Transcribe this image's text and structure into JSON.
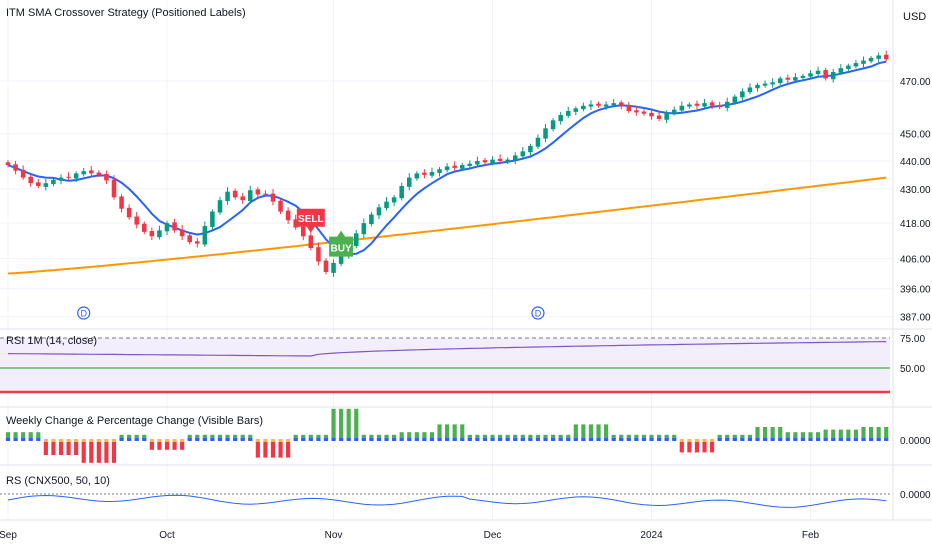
{
  "chart_data": [
    {
      "type": "candlestick",
      "title": "ITM SMA Crossover Strategy (Positioned Labels)",
      "currency": "USD",
      "y_ticks": [
        387.0,
        396.0,
        406.0,
        418.0,
        430.0,
        440.0,
        450.0,
        470.0
      ],
      "y_tick_labels": [
        "387.00",
        "396.00",
        "406.00",
        "418.00",
        "430.00",
        "440.00",
        "450.00",
        "470.00"
      ],
      "ylim": [
        384,
        500
      ],
      "y_scale": "log",
      "x_ticks": [
        {
          "label": "Sep",
          "index": 0
        },
        {
          "label": "Oct",
          "index": 21
        },
        {
          "label": "Nov",
          "index": 43
        },
        {
          "label": "Dec",
          "index": 64
        },
        {
          "label": "2024",
          "index": 85
        },
        {
          "label": "Feb",
          "index": 106
        }
      ],
      "x_count": 117,
      "close_start": 439.5,
      "close_changes": [
        -1.0,
        -2.0,
        -2.5,
        -2.0,
        -1.0,
        1.0,
        1.2,
        0.8,
        0.0,
        1.5,
        0.8,
        -0.8,
        -0.5,
        -2.0,
        -6.0,
        -4.0,
        -3.0,
        -2.5,
        -2.5,
        -1.5,
        2.0,
        2.5,
        -2.5,
        -2.0,
        -2.0,
        -0.5,
        6.0,
        5.0,
        4.0,
        3.0,
        -2.0,
        -1.0,
        3.5,
        -1.5,
        0.0,
        -2.5,
        -3.5,
        -3.0,
        -2.5,
        -3.0,
        -4.0,
        -4.5,
        -3.5,
        3.0,
        3.0,
        3.0,
        4.0,
        3.5,
        3.0,
        2.5,
        2.0,
        1.5,
        4.0,
        3.0,
        1.5,
        -0.5,
        1.0,
        1.0,
        1.0,
        -0.5,
        1.0,
        0.5,
        1.0,
        -0.5,
        1.0,
        -0.5,
        0.5,
        1.5,
        1.5,
        2.0,
        3.0,
        3.5,
        3.0,
        2.0,
        1.5,
        1.0,
        1.0,
        0.5,
        -0.5,
        0.5,
        0.5,
        -1.0,
        -2.0,
        -0.5,
        -0.5,
        -1.0,
        -1.0,
        2.5,
        1.0,
        1.5,
        0.5,
        -0.5,
        1.0,
        -1.0,
        -0.5,
        2.0,
        2.0,
        2.0,
        1.5,
        1.0,
        0.5,
        0.5,
        1.5,
        -0.5,
        1.0,
        0.5,
        1.0,
        1.0,
        -3.0,
        2.5,
        1.5,
        1.0,
        1.0,
        1.0,
        1.0,
        1.0,
        -1.5
      ],
      "sma_fast_label": "SMA fast",
      "sma_slow_start": 401.0,
      "sma_slow_end": 434.0,
      "signals": [
        {
          "label": "SELL",
          "index": 40,
          "price": 414.0,
          "color": "#f23645",
          "position": "above"
        },
        {
          "label": "BUY",
          "index": 44,
          "price": 410.0,
          "color": "#4caf50",
          "position": "below"
        }
      ],
      "dividend_markers": [
        {
          "index": 10,
          "label": "D"
        },
        {
          "index": 70,
          "label": "D"
        }
      ],
      "up_color": "#089981",
      "down_color": "#f23645",
      "sma_fast_color": "#2962ff",
      "sma_slow_color": "#ff9800"
    },
    {
      "type": "line",
      "title": "RSI  1M (14, close)",
      "ylim": [
        20,
        80
      ],
      "y_ticks": [
        50,
        75
      ],
      "y_tick_labels": [
        "50.00",
        "75.00"
      ],
      "upper_band": 75,
      "middle_band": 50,
      "lower_band": 30,
      "values_start": 62,
      "values_mid_index": 40,
      "values_mid": 60,
      "values_end": 72,
      "line_color": "#7e57c2"
    },
    {
      "type": "bar",
      "title": "Weekly Change & Percentage Change (Visible Bars)",
      "y_ticks": [
        0
      ],
      "y_tick_labels": [
        "0.0000"
      ],
      "weekly_values": [
        3,
        -5,
        -8,
        2,
        -3,
        2,
        2,
        -6,
        2,
        12,
        2,
        3,
        6,
        2,
        2,
        2,
        6,
        2,
        2,
        -4,
        2,
        5,
        3,
        4,
        5
      ],
      "up_color": "#4caf50",
      "down_color": "#f23645",
      "base_color": "#2962ff",
      "neutral_color": "#ffb74d"
    },
    {
      "type": "line",
      "title": "RS (CNX500, 50, 10)",
      "y_ticks": [
        0
      ],
      "y_tick_labels": [
        "0.0000"
      ],
      "line_color": "#2962ff"
    }
  ]
}
